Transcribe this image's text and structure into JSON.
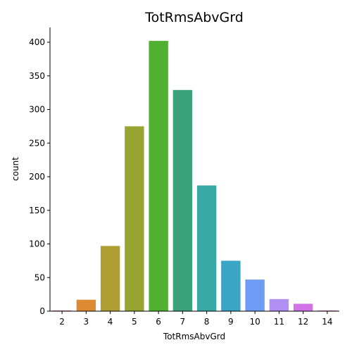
{
  "chart_data": {
    "type": "bar",
    "title": "TotRmsAbvGrd",
    "xlabel": "TotRmsAbvGrd",
    "ylabel": "count",
    "categories": [
      "2",
      "3",
      "4",
      "5",
      "6",
      "7",
      "8",
      "9",
      "10",
      "11",
      "12",
      "14"
    ],
    "values": [
      1,
      17,
      97,
      275,
      402,
      329,
      187,
      75,
      47,
      18,
      11,
      1
    ],
    "colors": [
      "#f77189",
      "#dc8932",
      "#ae9d31",
      "#97a431",
      "#50b131",
      "#3ba27c",
      "#38a9a5",
      "#3aa5c4",
      "#6e9bf4",
      "#b28ff4",
      "#d272e9",
      "#f565cc"
    ],
    "ylim": [
      0,
      422
    ],
    "yticks": [
      0,
      50,
      100,
      150,
      200,
      250,
      300,
      350,
      400
    ],
    "grid": false,
    "legend": "none"
  }
}
